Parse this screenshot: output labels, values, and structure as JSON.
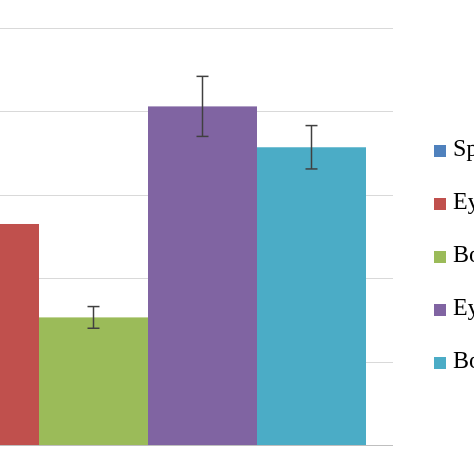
{
  "chart_data": {
    "type": "bar",
    "categories": [
      "Sp",
      "Ey",
      "Bo",
      "Ey",
      "Bo"
    ],
    "series": [
      {
        "name": "Sp",
        "color": "#4F81BD"
      },
      {
        "name": "Ey",
        "color": "#C0504D"
      },
      {
        "name": "Bo",
        "color": "#9BBB59"
      },
      {
        "name": "Ey",
        "color": "#8064A2"
      },
      {
        "name": "Bo",
        "color": "#4BACC6"
      }
    ],
    "values": [
      null,
      2.65,
      1.53,
      4.06,
      3.57
    ],
    "errors": [
      null,
      null,
      0.13,
      0.36,
      0.26
    ],
    "ylim": [
      0,
      5
    ],
    "grid": true,
    "legend": "right"
  },
  "legend": {
    "items": [
      {
        "label": "Sp"
      },
      {
        "label": "Ey"
      },
      {
        "label": "Bo"
      },
      {
        "label": "Ey"
      },
      {
        "label": "Bo"
      }
    ]
  }
}
